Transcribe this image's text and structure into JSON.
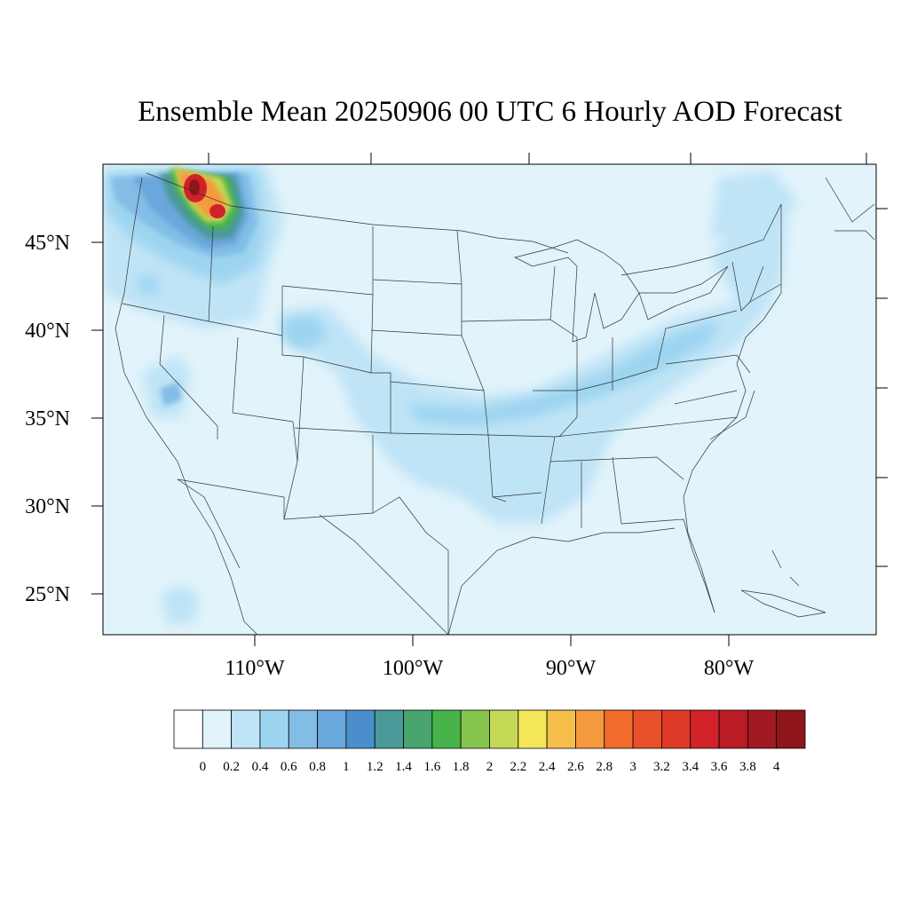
{
  "title": "Ensemble Mean 20250906 00 UTC 6 Hourly AOD Forecast",
  "map": {
    "lon_range": [
      -119,
      -71
    ],
    "lat_range": [
      22.5,
      49.5
    ],
    "background_color": "#e1f3fb",
    "lat_labels": [
      "45°N",
      "40°N",
      "35°N",
      "30°N",
      "25°N"
    ],
    "lon_labels": [
      "110°W",
      "100°W",
      "90°W",
      "80°W"
    ]
  },
  "colorbar": {
    "labels": [
      "0",
      "0.2",
      "0.4",
      "0.6",
      "0.8",
      "1",
      "1.2",
      "1.4",
      "1.6",
      "1.8",
      "2",
      "2.2",
      "2.4",
      "2.6",
      "2.8",
      "3",
      "3.2",
      "3.4",
      "3.6",
      "3.8",
      "4"
    ],
    "colors": [
      "#ffffff",
      "#e1f3fb",
      "#bfe4f6",
      "#9dd4f0",
      "#82bde6",
      "#6aa7dc",
      "#4a8fcb",
      "#4a9a9a",
      "#47a56d",
      "#48b34a",
      "#86c64e",
      "#c5d956",
      "#f5e65a",
      "#f6bf4c",
      "#f59a3e",
      "#f26c2b",
      "#e8502a",
      "#df3a28",
      "#d12229",
      "#b91c24",
      "#a11a21",
      "#8e1519"
    ]
  }
}
